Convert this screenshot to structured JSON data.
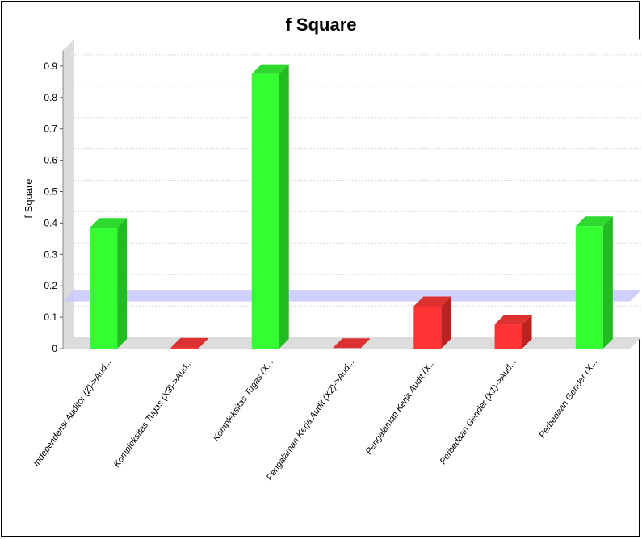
{
  "chart_data": {
    "type": "bar",
    "title": "f Square",
    "xlabel": "",
    "ylabel": "f Square",
    "ylim": [
      0,
      0.95
    ],
    "yticks": [
      "0",
      "0.1",
      "0.2",
      "0.3",
      "0.4",
      "0.5",
      "0.6",
      "0.7",
      "0.8",
      "0.9"
    ],
    "categories": [
      "Independensi Auditor (Z)->Aud...",
      "Kompleksitas Tugas (X3)->Aud...",
      "Kompleksitas Tugas (X...",
      "Pengalaman Kerja Audit (X2)->Aud...",
      "Pengalaman Kerja Audit (X...",
      "Perbedaan Gender (X1)->Aud...",
      "Perbedaan Gender (X..."
    ],
    "values": [
      0.385,
      0.003,
      0.875,
      0.002,
      0.135,
      0.077,
      0.39
    ],
    "threshold": 0.15,
    "grid": true,
    "colors": {
      "above_threshold": "#33ff33",
      "above_threshold_side": "#22bb22",
      "above_threshold_top": "#2fd82f",
      "below_threshold": "#ff3333",
      "below_threshold_side": "#bb2222",
      "below_threshold_top": "#dd3030",
      "threshold_band": "#c8c8ff",
      "grid": "#d8d8d8",
      "wall": "#dcdcdc"
    }
  }
}
